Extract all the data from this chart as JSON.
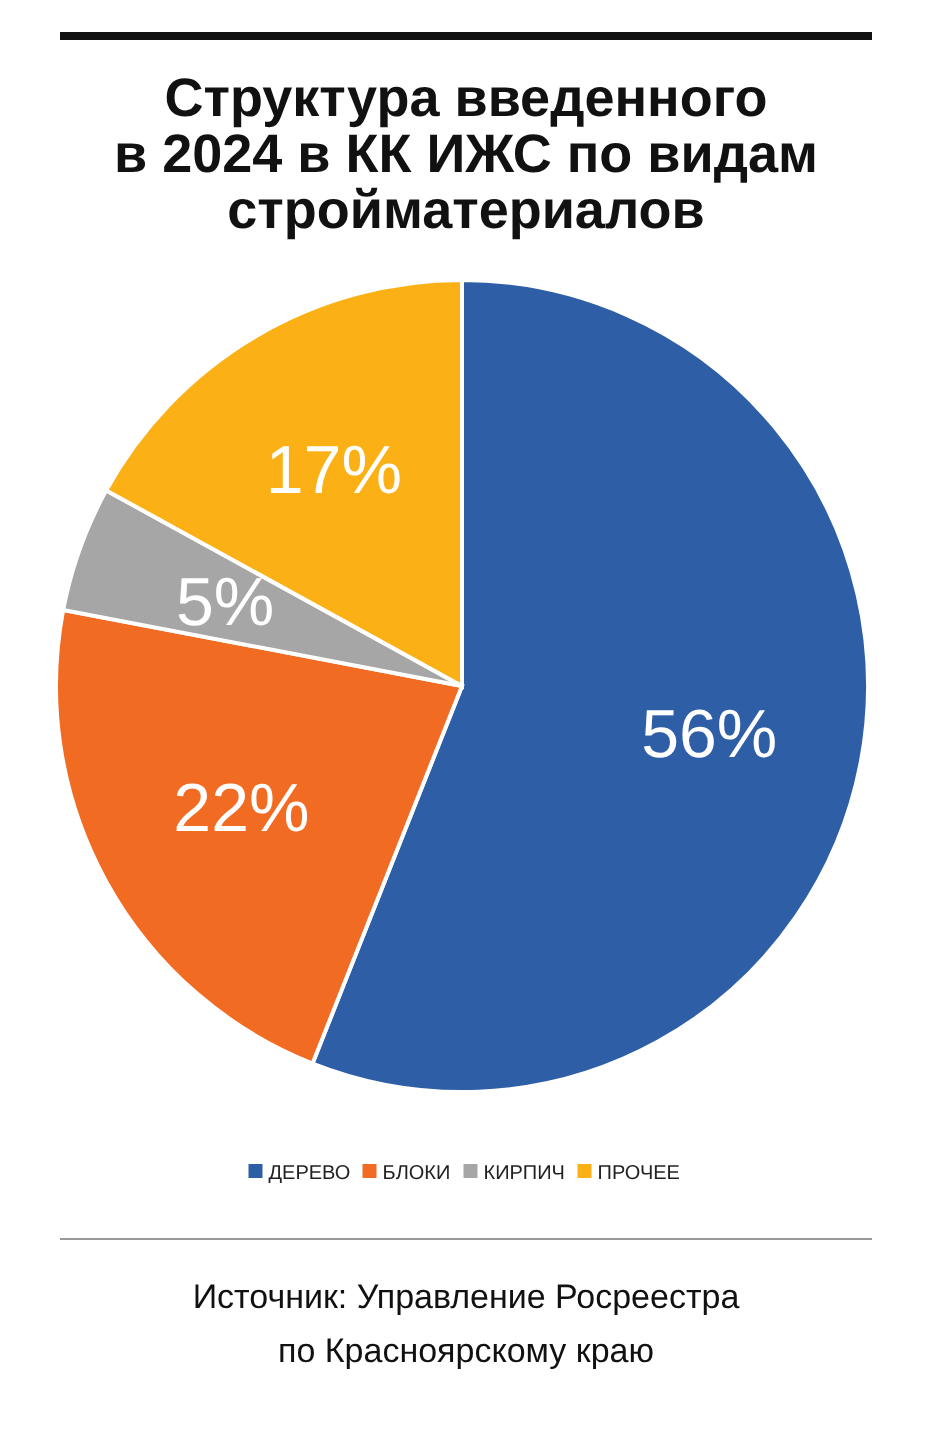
{
  "chart_data": {
    "type": "pie",
    "title": "Структура введенного\nв 2024 в КК ИЖС по видам\nстройматериалов",
    "categories": [
      "ДЕРЕВО",
      "БЛОКИ",
      "КИРПИЧ",
      "ПРОЧЕЕ"
    ],
    "values": [
      56,
      22,
      5,
      17
    ],
    "value_labels": [
      "56%",
      "22%",
      "5%",
      "17%"
    ],
    "colors": [
      "#2e5ea6",
      "#f26b23",
      "#a6a6a6",
      "#fbb116"
    ],
    "legend": "bottom",
    "annotations": [
      "Источник: Управление Росреестра\nпо Красноярскому краю"
    ]
  }
}
